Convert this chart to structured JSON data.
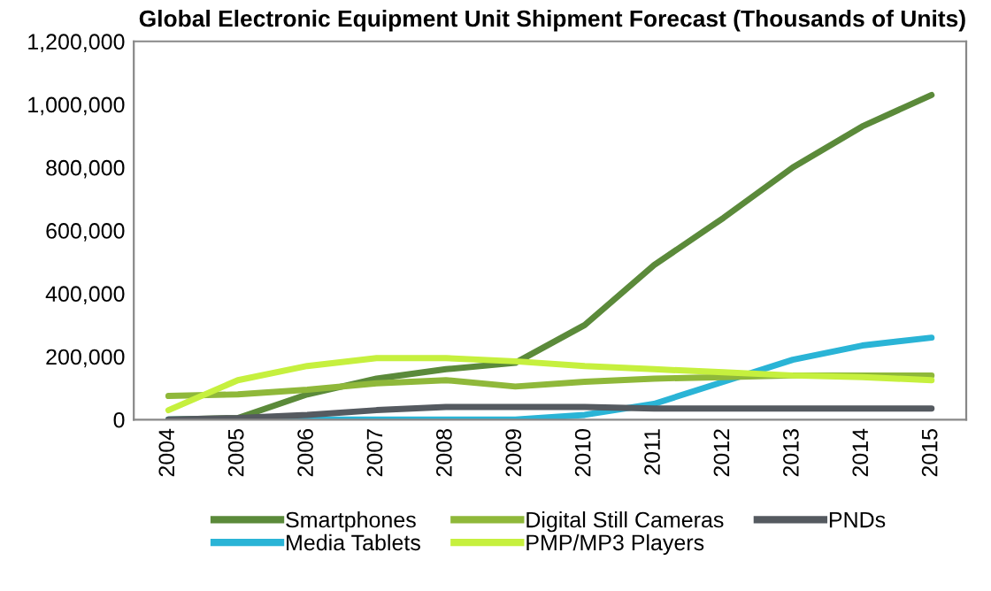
{
  "chart_data": {
    "type": "line",
    "title": "Global Electronic Equipment Unit Shipment Forecast (Thousands of Units)",
    "categories": [
      "2004",
      "2005",
      "2006",
      "2007",
      "2008",
      "2009",
      "2010",
      "2011",
      "2012",
      "2013",
      "2014",
      "2015"
    ],
    "series": [
      {
        "name": "Smartphones",
        "color": "#5b8a3a",
        "values": [
          0,
          5000,
          80000,
          130000,
          160000,
          180000,
          300000,
          490000,
          640000,
          800000,
          930000,
          1030000
        ]
      },
      {
        "name": "Media Tablets",
        "color": "#2ab4d6",
        "values": [
          0,
          0,
          0,
          0,
          0,
          0,
          15000,
          50000,
          120000,
          190000,
          235000,
          260000
        ]
      },
      {
        "name": "Digital Still Cameras",
        "color": "#8fb83a",
        "values": [
          75000,
          80000,
          95000,
          115000,
          125000,
          105000,
          120000,
          130000,
          135000,
          140000,
          140000,
          140000
        ]
      },
      {
        "name": "PMP/MP3 Players",
        "color": "#c6f03e",
        "values": [
          30000,
          125000,
          170000,
          195000,
          195000,
          185000,
          170000,
          160000,
          150000,
          140000,
          135000,
          125000
        ]
      },
      {
        "name": "PNDs",
        "color": "#555a60",
        "values": [
          0,
          5000,
          15000,
          30000,
          40000,
          40000,
          40000,
          35000,
          35000,
          35000,
          35000,
          35000
        ]
      }
    ],
    "ylim": [
      0,
      1200000
    ],
    "yticks": [
      {
        "value": 0,
        "label": "0"
      },
      {
        "value": 200000,
        "label": "200,000"
      },
      {
        "value": 400000,
        "label": "400,000"
      },
      {
        "value": 600000,
        "label": "600,000"
      },
      {
        "value": 800000,
        "label": "800,000"
      },
      {
        "value": 1000000,
        "label": "1,000,000"
      },
      {
        "value": 1200000,
        "label": "1,200,000"
      }
    ],
    "grid": false,
    "legend": "bottom",
    "marker": "none",
    "line_style": "solid"
  }
}
